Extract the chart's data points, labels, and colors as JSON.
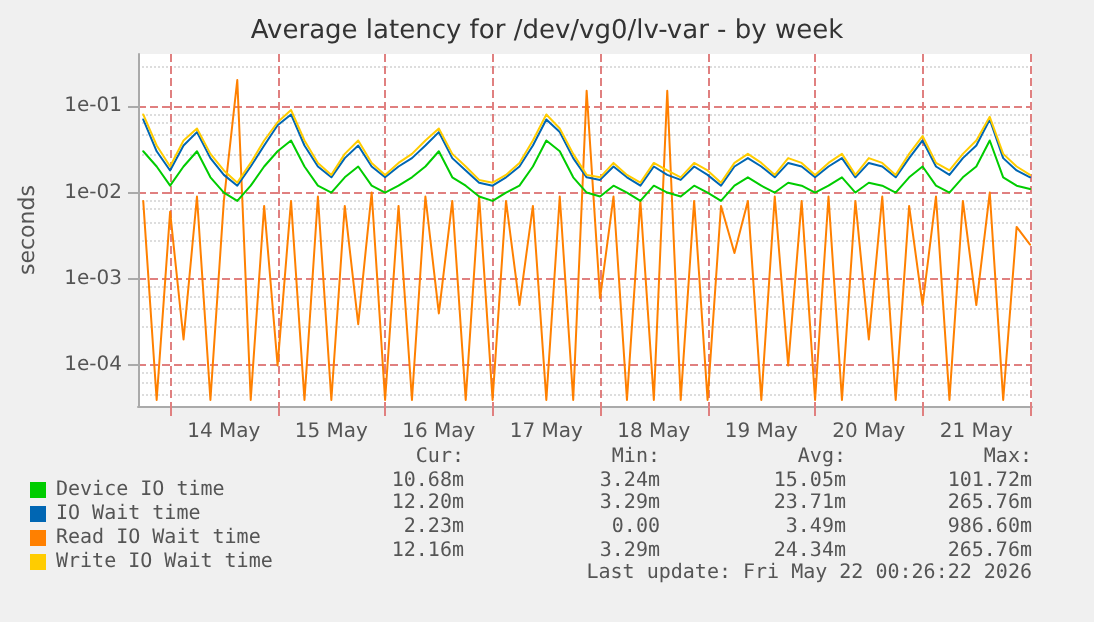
{
  "chart_data": {
    "type": "line",
    "title": "Average latency for /dev/vg0/lv-var - by week",
    "ylabel": "seconds",
    "log": "y",
    "grid": true,
    "legend": "bottom left",
    "marker": "none",
    "line_style": "solid",
    "xlim": [
      "2026-05-13T16:50",
      "2026-05-22T00:26"
    ],
    "xticks": [
      {
        "value": "2026-05-14",
        "label": null
      },
      {
        "value": "2026-05-14T12:00",
        "label": "14 May"
      },
      {
        "value": "2026-05-15",
        "label": null
      },
      {
        "value": "2026-05-15T12:00",
        "label": "15 May"
      },
      {
        "value": "2026-05-16",
        "label": null
      },
      {
        "value": "2026-05-16T12:00",
        "label": "16 May"
      },
      {
        "value": "2026-05-17",
        "label": null
      },
      {
        "value": "2026-05-17T12:00",
        "label": "17 May"
      },
      {
        "value": "2026-05-18",
        "label": null
      },
      {
        "value": "2026-05-18T12:00",
        "label": "18 May"
      },
      {
        "value": "2026-05-19",
        "label": null
      },
      {
        "value": "2026-05-19T12:00",
        "label": "19 May"
      },
      {
        "value": "2026-05-20",
        "label": null
      },
      {
        "value": "2026-05-20T12:00",
        "label": "20 May"
      },
      {
        "value": "2026-05-21",
        "label": null
      },
      {
        "value": "2026-05-21T12:00",
        "label": "21 May"
      },
      {
        "value": "2026-05-22",
        "label": null
      }
    ],
    "ylim": [
      3.4e-05,
      0.4
    ],
    "yticks": [
      {
        "value": 0.0001,
        "label": "1e-04"
      },
      {
        "value": 0.001,
        "label": "1e-03"
      },
      {
        "value": 0.01,
        "label": "1e-02"
      },
      {
        "value": 0.1,
        "label": "1e-01"
      }
    ],
    "x": [
      "2026-05-13T18:00",
      "2026-05-13T21:00",
      "2026-05-14T00:00",
      "2026-05-14T03:00",
      "2026-05-14T06:00",
      "2026-05-14T09:00",
      "2026-05-14T12:00",
      "2026-05-14T15:00",
      "2026-05-14T18:00",
      "2026-05-14T21:00",
      "2026-05-15T00:00",
      "2026-05-15T03:00",
      "2026-05-15T06:00",
      "2026-05-15T09:00",
      "2026-05-15T12:00",
      "2026-05-15T15:00",
      "2026-05-15T18:00",
      "2026-05-15T21:00",
      "2026-05-16T00:00",
      "2026-05-16T03:00",
      "2026-05-16T06:00",
      "2026-05-16T09:00",
      "2026-05-16T12:00",
      "2026-05-16T15:00",
      "2026-05-16T18:00",
      "2026-05-16T21:00",
      "2026-05-17T00:00",
      "2026-05-17T03:00",
      "2026-05-17T06:00",
      "2026-05-17T09:00",
      "2026-05-17T12:00",
      "2026-05-17T15:00",
      "2026-05-17T18:00",
      "2026-05-17T21:00",
      "2026-05-18T00:00",
      "2026-05-18T03:00",
      "2026-05-18T06:00",
      "2026-05-18T09:00",
      "2026-05-18T12:00",
      "2026-05-18T15:00",
      "2026-05-18T18:00",
      "2026-05-18T21:00",
      "2026-05-19T00:00",
      "2026-05-19T03:00",
      "2026-05-19T06:00",
      "2026-05-19T09:00",
      "2026-05-19T12:00",
      "2026-05-19T15:00",
      "2026-05-19T18:00",
      "2026-05-19T21:00",
      "2026-05-20T00:00",
      "2026-05-20T03:00",
      "2026-05-20T06:00",
      "2026-05-20T09:00",
      "2026-05-20T12:00",
      "2026-05-20T15:00",
      "2026-05-20T18:00",
      "2026-05-20T21:00",
      "2026-05-21T00:00",
      "2026-05-21T03:00",
      "2026-05-21T06:00",
      "2026-05-21T09:00",
      "2026-05-21T12:00",
      "2026-05-21T15:00",
      "2026-05-21T18:00",
      "2026-05-21T21:00",
      "2026-05-22T00:00"
    ],
    "series": [
      {
        "name": "Read IO Wait time",
        "color": "#ff8000",
        "values": [
          0.008,
          4e-05,
          0.006,
          0.0002,
          0.009,
          4e-05,
          0.008,
          0.2,
          4e-05,
          0.007,
          0.0001,
          0.008,
          4e-05,
          0.009,
          4e-05,
          0.007,
          0.0003,
          0.01,
          4e-05,
          0.007,
          4e-05,
          0.009,
          0.0004,
          0.008,
          4e-05,
          0.009,
          4e-05,
          0.008,
          0.0005,
          0.007,
          4e-05,
          0.009,
          4e-05,
          0.15,
          0.0006,
          0.009,
          4e-05,
          0.008,
          4e-05,
          0.15,
          4e-05,
          0.008,
          4e-05,
          0.007,
          0.002,
          0.008,
          4e-05,
          0.009,
          0.0001,
          0.008,
          4e-05,
          0.009,
          4e-05,
          0.008,
          0.0002,
          0.009,
          4e-05,
          0.007,
          0.0005,
          0.009,
          4e-05,
          0.008,
          0.0005,
          0.01,
          4e-05,
          0.004,
          0.0025
        ]
      },
      {
        "name": "Device IO time",
        "color": "#00cc00",
        "values": [
          0.03,
          0.02,
          0.012,
          0.02,
          0.03,
          0.015,
          0.01,
          0.008,
          0.012,
          0.02,
          0.03,
          0.04,
          0.02,
          0.012,
          0.01,
          0.015,
          0.02,
          0.012,
          0.01,
          0.012,
          0.015,
          0.02,
          0.03,
          0.015,
          0.012,
          0.009,
          0.008,
          0.01,
          0.012,
          0.02,
          0.04,
          0.03,
          0.015,
          0.01,
          0.009,
          0.012,
          0.01,
          0.008,
          0.012,
          0.01,
          0.009,
          0.012,
          0.01,
          0.008,
          0.012,
          0.015,
          0.012,
          0.01,
          0.013,
          0.012,
          0.01,
          0.012,
          0.015,
          0.01,
          0.013,
          0.012,
          0.01,
          0.015,
          0.02,
          0.012,
          0.01,
          0.015,
          0.02,
          0.04,
          0.015,
          0.012,
          0.011
        ]
      },
      {
        "name": "IO Wait time",
        "color": "#0066b3",
        "values": [
          0.07,
          0.03,
          0.018,
          0.035,
          0.05,
          0.025,
          0.016,
          0.012,
          0.02,
          0.035,
          0.06,
          0.08,
          0.035,
          0.02,
          0.015,
          0.025,
          0.035,
          0.02,
          0.015,
          0.02,
          0.025,
          0.035,
          0.05,
          0.025,
          0.018,
          0.013,
          0.012,
          0.015,
          0.02,
          0.035,
          0.07,
          0.05,
          0.025,
          0.015,
          0.014,
          0.02,
          0.015,
          0.012,
          0.02,
          0.016,
          0.014,
          0.02,
          0.016,
          0.012,
          0.02,
          0.025,
          0.02,
          0.015,
          0.022,
          0.02,
          0.015,
          0.02,
          0.025,
          0.015,
          0.022,
          0.02,
          0.015,
          0.025,
          0.04,
          0.02,
          0.016,
          0.025,
          0.035,
          0.07,
          0.025,
          0.018,
          0.015
        ]
      },
      {
        "name": "Write IO Wait time",
        "color": "#ffcc00",
        "values": [
          0.08,
          0.035,
          0.02,
          0.04,
          0.055,
          0.028,
          0.018,
          0.013,
          0.022,
          0.04,
          0.065,
          0.09,
          0.04,
          0.022,
          0.016,
          0.028,
          0.04,
          0.022,
          0.016,
          0.022,
          0.028,
          0.04,
          0.055,
          0.028,
          0.02,
          0.014,
          0.013,
          0.016,
          0.022,
          0.04,
          0.08,
          0.055,
          0.028,
          0.016,
          0.015,
          0.022,
          0.016,
          0.013,
          0.022,
          0.018,
          0.015,
          0.022,
          0.018,
          0.013,
          0.022,
          0.028,
          0.022,
          0.016,
          0.025,
          0.022,
          0.016,
          0.022,
          0.028,
          0.016,
          0.025,
          0.022,
          0.016,
          0.028,
          0.045,
          0.022,
          0.018,
          0.028,
          0.04,
          0.075,
          0.028,
          0.02,
          0.016
        ]
      }
    ],
    "annotations": [
      "Cur:",
      "Min:",
      "Avg:",
      "Max:",
      "10.68m",
      "3.24m",
      "15.05m",
      "101.72m",
      "12.20m",
      "3.29m",
      "23.71m",
      "265.76m",
      "2.23m",
      "0.00",
      "3.49m",
      "986.60m",
      "12.16m",
      "3.29m",
      "24.34m",
      "265.76m",
      "Last update: Fri May 22 00:26:22 2026"
    ]
  }
}
